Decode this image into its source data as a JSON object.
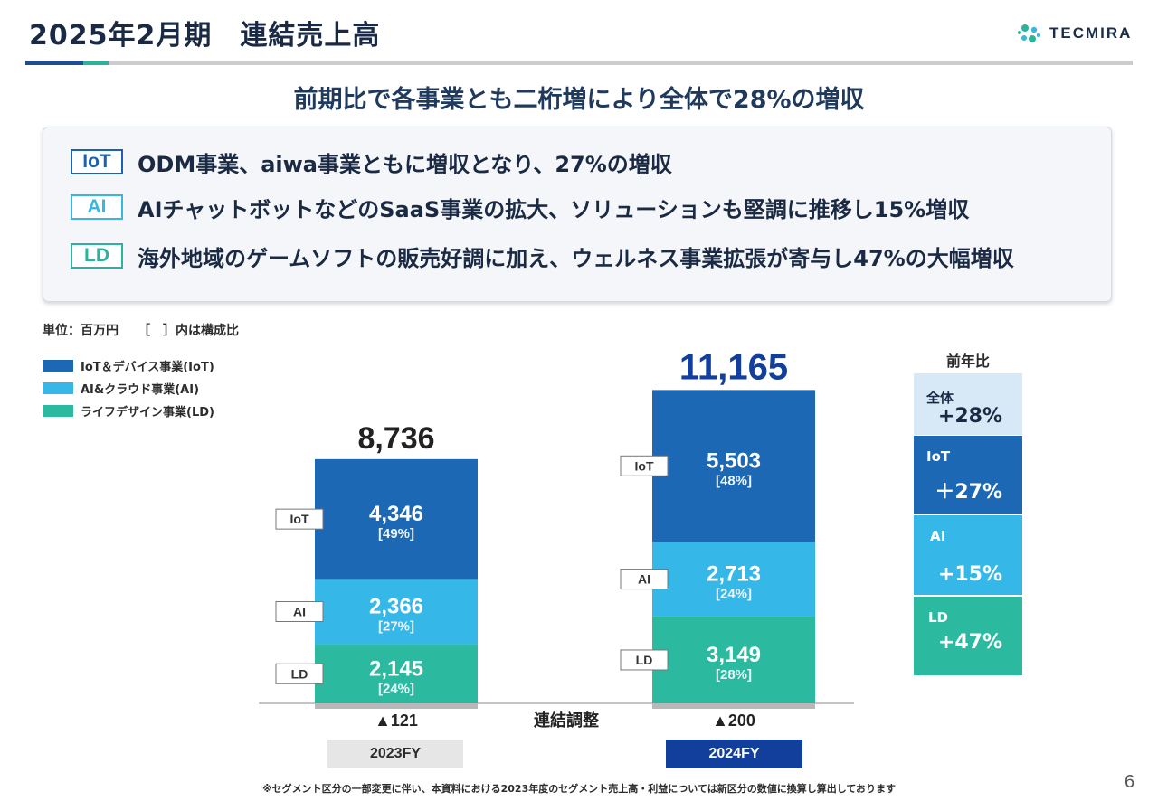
{
  "header": {
    "title": "2025年2月期　連結売上高",
    "logo_text": "TECMIRA",
    "subtitle": "前期比で各事業とも二桁増により全体で28%の増収"
  },
  "summary": [
    {
      "tag": "IoT",
      "text": "ODM事業、aiwa事業ともに増収となり、27%の増収",
      "color": "#1c63ae"
    },
    {
      "tag": "AI",
      "text": "AIチャットボットなどのSaaS事業の拡大、ソリューションも堅調に推移し15%増収",
      "color": "#38b6e0"
    },
    {
      "tag": "LD",
      "text": "海外地域のゲームソフトの販売好調に加え、ウェルネス事業拡張が寄与し47%の大幅増収",
      "color": "#2bb39c"
    }
  ],
  "unit_note": "単位：百万円　　［　］内は構成比",
  "colors": {
    "iot": "#1c68b4",
    "ai": "#35b8e8",
    "ld": "#2bbaa0",
    "fy2023": "#e6e6e6",
    "fy2024": "#123f9c"
  },
  "chart_data": {
    "type": "bar",
    "stacked": true,
    "categories": [
      "2023FY",
      "2024FY"
    ],
    "series": [
      {
        "name": "IoT＆デバイス事業(IoT)",
        "short": "IoT",
        "values": [
          4346,
          5503
        ],
        "labels": [
          "4,346",
          "5,503"
        ],
        "shares": [
          "[49%]",
          "[48%]"
        ],
        "color": "#1c68b4"
      },
      {
        "name": "AI&クラウド事業(AI)",
        "short": "AI",
        "values": [
          2366,
          2713
        ],
        "labels": [
          "2,366",
          "2,713"
        ],
        "shares": [
          "[27%]",
          "[24%]"
        ],
        "color": "#35b8e8"
      },
      {
        "name": "ライフデザイン事業(LD)",
        "short": "LD",
        "values": [
          2145,
          3149
        ],
        "labels": [
          "2,145",
          "3,149"
        ],
        "shares": [
          "[24%]",
          "[28%]"
        ],
        "color": "#2bbaa0"
      }
    ],
    "adjustments": {
      "label": "連結調整",
      "values": [
        -121,
        -200
      ],
      "labels": [
        "▲121",
        "▲200"
      ]
    },
    "totals": {
      "values": [
        8736,
        11165
      ],
      "labels": [
        "8,736",
        "11,165"
      ]
    }
  },
  "yoy": {
    "header": "前年比",
    "items": [
      {
        "label": "全体",
        "value": "+28%",
        "bg": "#d7e8f6",
        "fg": "#1b2a44"
      },
      {
        "label": "IoT",
        "value": "＋27%",
        "bg": "#1c68b4",
        "fg": "#ffffff"
      },
      {
        "label": "AI",
        "value": "+15%",
        "bg": "#35b8e8",
        "fg": "#ffffff"
      },
      {
        "label": "LD",
        "value": "+47%",
        "bg": "#2bbaa0",
        "fg": "#ffffff"
      }
    ]
  },
  "footnote": "※セグメント区分の一部変更に伴い、本資料における2023年度のセグメント売上高・利益については新区分の数値に換算し算出しております",
  "page_number": "6"
}
